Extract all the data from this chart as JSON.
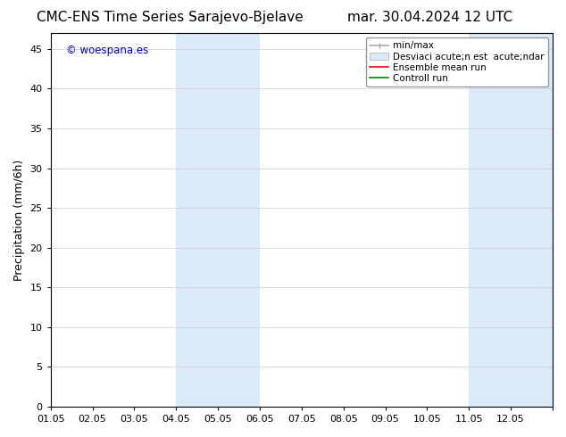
{
  "title_left": "CMC-ENS Time Series Sarajevo-Bjelave",
  "title_right": "mar. 30.04.2024 12 UTC",
  "ylabel": "Precipitation (mm/6h)",
  "watermark": "© woespana.es",
  "watermark_color": "#0000cc",
  "xlim_min": 0,
  "xlim_max": 12,
  "ylim_min": 0,
  "ylim_max": 47,
  "yticks": [
    0,
    5,
    10,
    15,
    20,
    25,
    30,
    35,
    40,
    45
  ],
  "xtick_labels": [
    "01.05",
    "02.05",
    "03.05",
    "04.05",
    "05.05",
    "06.05",
    "07.05",
    "08.05",
    "09.05",
    "10.05",
    "11.05",
    "12.05",
    ""
  ],
  "shaded_regions": [
    {
      "x_start": 3,
      "x_end": 5,
      "color": "#daeaf8"
    },
    {
      "x_start": 10,
      "x_end": 12,
      "color": "#daeaf8"
    }
  ],
  "legend_minmax_color": "#aaaaaa",
  "legend_dev_color": "#daeaf8",
  "legend_dev_edge": "#aaaaaa",
  "legend_ensemble_color": "#ff0000",
  "legend_control_color": "#008000",
  "legend_label_minmax": "min/max",
  "legend_label_dev": "Desviaci acute;n est  acute;ndar",
  "legend_label_ensemble": "Ensemble mean run",
  "legend_label_control": "Controll run",
  "background_color": "#ffffff",
  "plot_bg_color": "#ffffff",
  "border_color": "#000000",
  "grid_color": "#cccccc",
  "tick_fontsize": 8,
  "label_fontsize": 9,
  "title_fontsize": 11,
  "legend_fontsize": 7.5
}
